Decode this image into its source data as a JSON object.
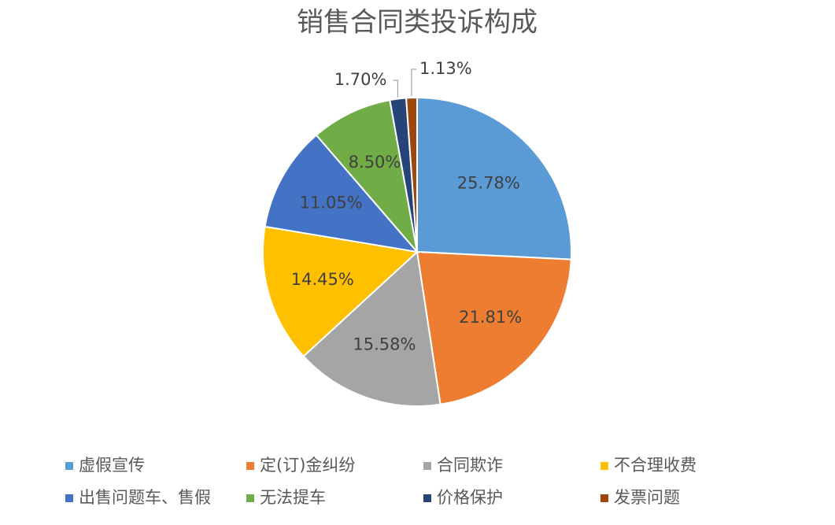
{
  "chart_data": {
    "type": "pie",
    "title": "销售合同类投诉构成",
    "categories": [
      "虚假宣传",
      "定(订)金纠纷",
      "合同欺诈",
      "不合理收费",
      "出售问题车、售假",
      "无法提车",
      "价格保护",
      "发票问题"
    ],
    "values": [
      25.78,
      21.81,
      15.58,
      14.45,
      11.05,
      8.5,
      1.7,
      1.13
    ],
    "value_labels": [
      "25.78%",
      "21.81%",
      "15.58%",
      "14.45%",
      "11.05%",
      "8.50%",
      "1.70%",
      "1.13%"
    ],
    "colors": [
      "#5b9bd5",
      "#ed7d31",
      "#a5a5a5",
      "#ffc000",
      "#4472c4",
      "#70ad47",
      "#264478",
      "#9e480e"
    ],
    "legend": "bottom"
  }
}
